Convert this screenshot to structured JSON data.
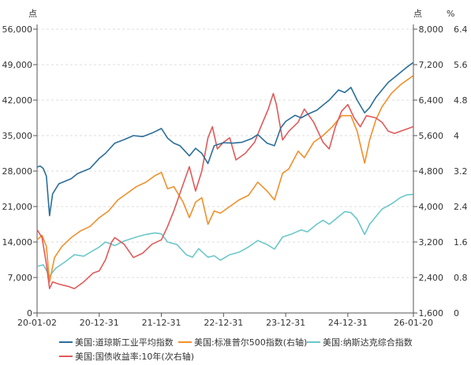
{
  "chart_data": {
    "type": "line",
    "left_unit": "点",
    "right1_unit": "点",
    "right2_unit": "%",
    "x_ticks": [
      "20-01-02",
      "20-12-31",
      "21-12-31",
      "22-12-31",
      "23-12-31",
      "24-12-31",
      "26-01-20"
    ],
    "left_axis": {
      "ticks": [
        "0",
        "7,000",
        "14,000",
        "21,000",
        "28,000",
        "35,000",
        "42,000",
        "49,000",
        "56,000"
      ],
      "ylim": [
        0,
        56000
      ]
    },
    "right1_axis": {
      "ticks": [
        "1,600",
        "2,400",
        "3,200",
        "4,000",
        "4,800",
        "5,600",
        "6,400",
        "7,200",
        "8,000"
      ],
      "ylim": [
        1600,
        8000
      ]
    },
    "right2_axis": {
      "ticks": [
        "0",
        "0.8",
        "1.6",
        "2.4",
        "3.2",
        "4",
        "4.8",
        "5.6",
        "6.4"
      ],
      "ylim": [
        0,
        6.4
      ]
    },
    "grid": true,
    "legend_position": "bottom",
    "series": [
      {
        "name": "美国:道琼斯工业平均指数",
        "axis": "left",
        "color": "#2c6e99",
        "points": [
          [
            2020.0,
            28800
          ],
          [
            2020.05,
            29000
          ],
          [
            2020.1,
            28500
          ],
          [
            2020.15,
            27000
          ],
          [
            2020.2,
            19200
          ],
          [
            2020.25,
            23500
          ],
          [
            2020.35,
            25500
          ],
          [
            2020.45,
            26000
          ],
          [
            2020.55,
            26500
          ],
          [
            2020.65,
            27500
          ],
          [
            2020.75,
            28000
          ],
          [
            2020.85,
            28500
          ],
          [
            2021.0,
            30500
          ],
          [
            2021.1,
            31500
          ],
          [
            2021.25,
            33500
          ],
          [
            2021.4,
            34200
          ],
          [
            2021.55,
            35000
          ],
          [
            2021.7,
            34800
          ],
          [
            2021.85,
            35500
          ],
          [
            2022.0,
            36400
          ],
          [
            2022.1,
            34500
          ],
          [
            2022.2,
            33500
          ],
          [
            2022.3,
            33000
          ],
          [
            2022.45,
            31000
          ],
          [
            2022.55,
            32500
          ],
          [
            2022.65,
            31500
          ],
          [
            2022.75,
            29500
          ],
          [
            2022.85,
            33000
          ],
          [
            2023.0,
            33600
          ],
          [
            2023.15,
            33500
          ],
          [
            2023.3,
            33700
          ],
          [
            2023.45,
            34400
          ],
          [
            2023.55,
            35200
          ],
          [
            2023.7,
            33500
          ],
          [
            2023.82,
            33000
          ],
          [
            2023.92,
            36500
          ],
          [
            2024.0,
            37800
          ],
          [
            2024.15,
            39000
          ],
          [
            2024.25,
            38500
          ],
          [
            2024.35,
            39200
          ],
          [
            2024.5,
            40000
          ],
          [
            2024.6,
            41000
          ],
          [
            2024.7,
            42000
          ],
          [
            2024.85,
            44000
          ],
          [
            2024.95,
            43500
          ],
          [
            2025.05,
            44500
          ],
          [
            2025.15,
            42000
          ],
          [
            2025.27,
            39500
          ],
          [
            2025.35,
            40500
          ],
          [
            2025.45,
            42500
          ],
          [
            2025.55,
            44000
          ],
          [
            2025.65,
            45500
          ],
          [
            2025.75,
            46500
          ],
          [
            2025.85,
            47500
          ],
          [
            2025.95,
            48500
          ],
          [
            2026.05,
            49400
          ]
        ]
      },
      {
        "name": "美国:标准普尔500指数(右轴)",
        "axis": "right1",
        "color": "#f0902a",
        "points": [
          [
            2020.0,
            3250
          ],
          [
            2020.08,
            3350
          ],
          [
            2020.15,
            3100
          ],
          [
            2020.2,
            2300
          ],
          [
            2020.28,
            2850
          ],
          [
            2020.4,
            3100
          ],
          [
            2020.55,
            3300
          ],
          [
            2020.7,
            3450
          ],
          [
            2020.85,
            3550
          ],
          [
            2021.0,
            3750
          ],
          [
            2021.15,
            3900
          ],
          [
            2021.3,
            4150
          ],
          [
            2021.45,
            4300
          ],
          [
            2021.6,
            4450
          ],
          [
            2021.75,
            4550
          ],
          [
            2021.9,
            4700
          ],
          [
            2022.0,
            4770
          ],
          [
            2022.1,
            4400
          ],
          [
            2022.2,
            4450
          ],
          [
            2022.35,
            4100
          ],
          [
            2022.45,
            3750
          ],
          [
            2022.55,
            4100
          ],
          [
            2022.65,
            4200
          ],
          [
            2022.75,
            3600
          ],
          [
            2022.85,
            3900
          ],
          [
            2022.95,
            3850
          ],
          [
            2023.1,
            4000
          ],
          [
            2023.25,
            4150
          ],
          [
            2023.4,
            4250
          ],
          [
            2023.55,
            4550
          ],
          [
            2023.7,
            4350
          ],
          [
            2023.82,
            4150
          ],
          [
            2023.95,
            4750
          ],
          [
            2024.05,
            4850
          ],
          [
            2024.2,
            5250
          ],
          [
            2024.3,
            5100
          ],
          [
            2024.45,
            5450
          ],
          [
            2024.6,
            5600
          ],
          [
            2024.75,
            5800
          ],
          [
            2024.9,
            6050
          ],
          [
            2025.05,
            6050
          ],
          [
            2025.15,
            5700
          ],
          [
            2025.27,
            4980
          ],
          [
            2025.35,
            5500
          ],
          [
            2025.45,
            5950
          ],
          [
            2025.55,
            6250
          ],
          [
            2025.7,
            6550
          ],
          [
            2025.85,
            6750
          ],
          [
            2025.95,
            6850
          ],
          [
            2026.05,
            6950
          ]
        ]
      },
      {
        "name": "美国:纳斯达克综合指数",
        "axis": "left",
        "color": "#6cc7c9",
        "points": [
          [
            2020.0,
            9200
          ],
          [
            2020.1,
            9500
          ],
          [
            2020.2,
            7300
          ],
          [
            2020.3,
            8800
          ],
          [
            2020.45,
            10100
          ],
          [
            2020.6,
            11500
          ],
          [
            2020.75,
            11200
          ],
          [
            2020.9,
            12300
          ],
          [
            2021.0,
            13000
          ],
          [
            2021.1,
            14000
          ],
          [
            2021.25,
            13300
          ],
          [
            2021.4,
            14200
          ],
          [
            2021.6,
            15000
          ],
          [
            2021.75,
            15500
          ],
          [
            2021.9,
            15800
          ],
          [
            2022.0,
            15600
          ],
          [
            2022.1,
            14000
          ],
          [
            2022.25,
            13500
          ],
          [
            2022.4,
            11500
          ],
          [
            2022.5,
            11000
          ],
          [
            2022.6,
            12700
          ],
          [
            2022.75,
            11000
          ],
          [
            2022.85,
            11300
          ],
          [
            2022.95,
            10400
          ],
          [
            2023.1,
            11500
          ],
          [
            2023.25,
            12000
          ],
          [
            2023.4,
            13000
          ],
          [
            2023.55,
            14300
          ],
          [
            2023.7,
            13500
          ],
          [
            2023.82,
            12600
          ],
          [
            2023.95,
            15000
          ],
          [
            2024.1,
            15600
          ],
          [
            2024.25,
            16400
          ],
          [
            2024.35,
            16000
          ],
          [
            2024.5,
            17500
          ],
          [
            2024.6,
            18300
          ],
          [
            2024.7,
            17500
          ],
          [
            2024.85,
            19000
          ],
          [
            2024.95,
            20000
          ],
          [
            2025.05,
            19800
          ],
          [
            2025.15,
            18500
          ],
          [
            2025.27,
            15500
          ],
          [
            2025.35,
            17500
          ],
          [
            2025.45,
            19000
          ],
          [
            2025.55,
            20500
          ],
          [
            2025.7,
            21500
          ],
          [
            2025.85,
            22800
          ],
          [
            2025.95,
            23300
          ],
          [
            2026.05,
            23400
          ]
        ]
      },
      {
        "name": "美国:国债收益率:10年(次右轴)",
        "axis": "right2",
        "color": "#e05a5a",
        "points": [
          [
            2020.0,
            1.88
          ],
          [
            2020.08,
            1.7
          ],
          [
            2020.15,
            1.1
          ],
          [
            2020.2,
            0.55
          ],
          [
            2020.25,
            0.7
          ],
          [
            2020.35,
            0.65
          ],
          [
            2020.5,
            0.6
          ],
          [
            2020.6,
            0.55
          ],
          [
            2020.75,
            0.7
          ],
          [
            2020.9,
            0.9
          ],
          [
            2021.0,
            0.95
          ],
          [
            2021.1,
            1.2
          ],
          [
            2021.2,
            1.6
          ],
          [
            2021.25,
            1.7
          ],
          [
            2021.4,
            1.55
          ],
          [
            2021.55,
            1.25
          ],
          [
            2021.7,
            1.35
          ],
          [
            2021.85,
            1.55
          ],
          [
            2022.0,
            1.65
          ],
          [
            2022.1,
            1.95
          ],
          [
            2022.2,
            2.3
          ],
          [
            2022.35,
            2.9
          ],
          [
            2022.45,
            3.3
          ],
          [
            2022.55,
            2.75
          ],
          [
            2022.65,
            3.2
          ],
          [
            2022.75,
            3.95
          ],
          [
            2022.82,
            4.2
          ],
          [
            2022.9,
            3.7
          ],
          [
            2023.0,
            3.85
          ],
          [
            2023.1,
            3.95
          ],
          [
            2023.2,
            3.45
          ],
          [
            2023.35,
            3.6
          ],
          [
            2023.5,
            3.85
          ],
          [
            2023.6,
            4.2
          ],
          [
            2023.72,
            4.6
          ],
          [
            2023.8,
            4.95
          ],
          [
            2023.85,
            4.7
          ],
          [
            2023.95,
            3.9
          ],
          [
            2024.05,
            4.1
          ],
          [
            2024.2,
            4.3
          ],
          [
            2024.3,
            4.6
          ],
          [
            2024.45,
            4.3
          ],
          [
            2024.6,
            3.85
          ],
          [
            2024.7,
            3.7
          ],
          [
            2024.8,
            4.2
          ],
          [
            2024.9,
            4.55
          ],
          [
            2025.0,
            4.7
          ],
          [
            2025.1,
            4.4
          ],
          [
            2025.2,
            4.2
          ],
          [
            2025.3,
            4.45
          ],
          [
            2025.45,
            4.4
          ],
          [
            2025.55,
            4.3
          ],
          [
            2025.65,
            4.1
          ],
          [
            2025.75,
            4.05
          ],
          [
            2025.85,
            4.1
          ],
          [
            2025.95,
            4.15
          ],
          [
            2026.05,
            4.2
          ]
        ]
      }
    ]
  }
}
